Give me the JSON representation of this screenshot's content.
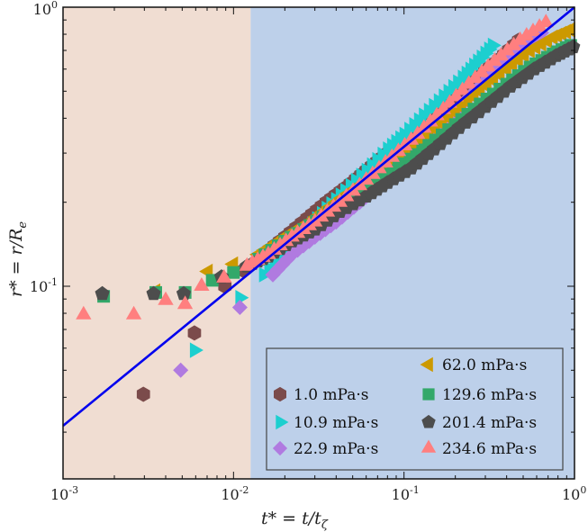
{
  "chart_data": {
    "type": "scatter",
    "xscale": "log",
    "yscale": "log",
    "xlim": [
      0.001,
      1
    ],
    "ylim": [
      0.0204,
      1
    ],
    "xlabel": {
      "main": "t* = t/t",
      "sub": "ζ"
    },
    "ylabel": {
      "main": "r* = r/R",
      "sub": "e"
    },
    "xticks": [
      {
        "base": "10",
        "exp": "-3",
        "value": 0.001
      },
      {
        "base": "10",
        "exp": "-2",
        "value": 0.01
      },
      {
        "base": "10",
        "exp": "-1",
        "value": 0.1
      },
      {
        "base": "10",
        "exp": "0",
        "value": 1
      }
    ],
    "yticks": [
      {
        "base": "10",
        "exp": "-1",
        "value": 0.1
      },
      {
        "base": "10",
        "exp": "0",
        "value": 1
      }
    ],
    "regions": [
      {
        "x0": 0.001,
        "x1": 0.0126,
        "color": "#f0ddd2"
      },
      {
        "x0": 0.0126,
        "x1": 1,
        "color": "#bdd0ea"
      }
    ],
    "reference_line": {
      "equation": "r* = t*^0.5",
      "exponent": 0.5,
      "prefactor": 1,
      "color": "#0000ee"
    },
    "legend_placement": "bottom-right",
    "series": [
      {
        "name": "1.0 mPa·s",
        "marker": "hexagon",
        "color": "#7b4b4b",
        "points": [
          [
            0.00296,
            0.041
          ],
          [
            0.0059,
            0.068
          ],
          [
            0.0089,
            0.1
          ],
          [
            0.0114,
            0.114
          ],
          [
            0.015,
            0.13
          ],
          [
            0.02,
            0.15
          ],
          [
            0.027,
            0.175
          ],
          [
            0.035,
            0.2
          ],
          [
            0.045,
            0.225
          ],
          [
            0.06,
            0.26
          ],
          [
            0.08,
            0.3
          ],
          [
            0.1,
            0.335
          ],
          [
            0.13,
            0.38
          ],
          [
            0.17,
            0.44
          ],
          [
            0.22,
            0.5
          ],
          [
            0.28,
            0.57
          ],
          [
            0.36,
            0.65
          ],
          [
            0.47,
            0.76
          ]
        ]
      },
      {
        "name": "10.9 mPa·s",
        "marker": "triangle-right",
        "color": "#1ccfcf",
        "points": [
          [
            0.0059,
            0.059
          ],
          [
            0.0109,
            0.091
          ],
          [
            0.015,
            0.11
          ],
          [
            0.02,
            0.135
          ],
          [
            0.027,
            0.16
          ],
          [
            0.035,
            0.19
          ],
          [
            0.045,
            0.22
          ],
          [
            0.06,
            0.26
          ],
          [
            0.08,
            0.31
          ],
          [
            0.1,
            0.35
          ],
          [
            0.13,
            0.41
          ],
          [
            0.17,
            0.48
          ],
          [
            0.22,
            0.56
          ],
          [
            0.27,
            0.64
          ],
          [
            0.33,
            0.73
          ]
        ]
      },
      {
        "name": "22.9 mPa·s",
        "marker": "diamond",
        "color": "#b07ae0",
        "points": [
          [
            0.0049,
            0.05
          ],
          [
            0.0109,
            0.084
          ],
          [
            0.017,
            0.11
          ],
          [
            0.022,
            0.13
          ],
          [
            0.03,
            0.15
          ],
          [
            0.04,
            0.17
          ],
          [
            0.055,
            0.2
          ],
          [
            0.075,
            0.235
          ],
          [
            0.1,
            0.28
          ],
          [
            0.14,
            0.34
          ],
          [
            0.19,
            0.41
          ],
          [
            0.26,
            0.5
          ],
          [
            0.35,
            0.6
          ],
          [
            0.47,
            0.7
          ],
          [
            0.64,
            0.81
          ]
        ]
      },
      {
        "name": "62.0  mPa·s",
        "marker": "triangle-left",
        "color": "#cc9900",
        "points": [
          [
            0.0035,
            0.096
          ],
          [
            0.0071,
            0.113
          ],
          [
            0.01,
            0.12
          ],
          [
            0.014,
            0.13
          ],
          [
            0.02,
            0.15
          ],
          [
            0.028,
            0.17
          ],
          [
            0.04,
            0.2
          ],
          [
            0.055,
            0.23
          ],
          [
            0.075,
            0.26
          ],
          [
            0.1,
            0.3
          ],
          [
            0.14,
            0.35
          ],
          [
            0.2,
            0.42
          ],
          [
            0.28,
            0.5
          ],
          [
            0.4,
            0.6
          ],
          [
            0.55,
            0.7
          ],
          [
            0.75,
            0.78
          ],
          [
            0.95,
            0.83
          ]
        ]
      },
      {
        "name": "129.6 mPa·s",
        "marker": "square",
        "color": "#33a86a",
        "points": [
          [
            0.00173,
            0.092
          ],
          [
            0.0035,
            0.095
          ],
          [
            0.0052,
            0.095
          ],
          [
            0.0075,
            0.105
          ],
          [
            0.01,
            0.112
          ],
          [
            0.014,
            0.125
          ],
          [
            0.02,
            0.145
          ],
          [
            0.028,
            0.165
          ],
          [
            0.04,
            0.19
          ],
          [
            0.055,
            0.215
          ],
          [
            0.075,
            0.245
          ],
          [
            0.1,
            0.275
          ],
          [
            0.14,
            0.32
          ],
          [
            0.2,
            0.38
          ],
          [
            0.28,
            0.45
          ],
          [
            0.4,
            0.53
          ],
          [
            0.55,
            0.61
          ],
          [
            0.75,
            0.68
          ],
          [
            0.95,
            0.73
          ]
        ]
      },
      {
        "name": "201.4 mPa·s",
        "marker": "pentagon",
        "color": "#4d4d4d",
        "points": [
          [
            0.0017,
            0.094
          ],
          [
            0.0034,
            0.094
          ],
          [
            0.0051,
            0.094
          ],
          [
            0.0085,
            0.108
          ],
          [
            0.012,
            0.118
          ],
          [
            0.016,
            0.128
          ],
          [
            0.022,
            0.145
          ],
          [
            0.03,
            0.16
          ],
          [
            0.042,
            0.185
          ],
          [
            0.06,
            0.21
          ],
          [
            0.08,
            0.235
          ],
          [
            0.11,
            0.265
          ],
          [
            0.15,
            0.31
          ],
          [
            0.21,
            0.37
          ],
          [
            0.3,
            0.44
          ],
          [
            0.42,
            0.52
          ],
          [
            0.58,
            0.6
          ],
          [
            0.78,
            0.67
          ],
          [
            0.98,
            0.72
          ]
        ]
      },
      {
        "name": "234.6 mPa·s",
        "marker": "triangle-up",
        "color": "#ff7f7f",
        "points": [
          [
            0.00132,
            0.079
          ],
          [
            0.0026,
            0.079
          ],
          [
            0.004,
            0.089
          ],
          [
            0.0052,
            0.086
          ],
          [
            0.0065,
            0.1
          ],
          [
            0.0088,
            0.107
          ],
          [
            0.012,
            0.118
          ],
          [
            0.016,
            0.13
          ],
          [
            0.022,
            0.15
          ],
          [
            0.03,
            0.17
          ],
          [
            0.042,
            0.2
          ],
          [
            0.06,
            0.24
          ],
          [
            0.085,
            0.29
          ],
          [
            0.12,
            0.35
          ],
          [
            0.17,
            0.43
          ],
          [
            0.24,
            0.53
          ],
          [
            0.34,
            0.64
          ],
          [
            0.48,
            0.76
          ],
          [
            0.68,
            0.88
          ]
        ]
      }
    ]
  }
}
